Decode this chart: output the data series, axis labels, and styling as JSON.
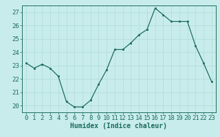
{
  "x": [
    0,
    1,
    2,
    3,
    4,
    5,
    6,
    7,
    8,
    9,
    10,
    11,
    12,
    13,
    14,
    15,
    16,
    17,
    18,
    19,
    20,
    21,
    22,
    23
  ],
  "y": [
    23.2,
    22.8,
    23.1,
    22.8,
    22.2,
    20.3,
    19.9,
    19.9,
    20.4,
    21.6,
    22.7,
    24.2,
    24.2,
    24.7,
    25.3,
    25.7,
    27.3,
    26.8,
    26.3,
    26.3,
    26.3,
    24.5,
    23.2,
    21.8
  ],
  "xlabel": "Humidex (Indice chaleur)",
  "ylim": [
    19.5,
    27.5
  ],
  "xlim": [
    -0.5,
    23.5
  ],
  "yticks": [
    20,
    21,
    22,
    23,
    24,
    25,
    26,
    27
  ],
  "xticks": [
    0,
    1,
    2,
    3,
    4,
    5,
    6,
    7,
    8,
    9,
    10,
    11,
    12,
    13,
    14,
    15,
    16,
    17,
    18,
    19,
    20,
    21,
    22,
    23
  ],
  "line_color": "#1a6b5a",
  "marker_color": "#1a6b5a",
  "bg_color": "#c8ecec",
  "grid_color": "#b0d8d8",
  "axis_color": "#1a6b5a",
  "xlabel_fontsize": 7,
  "tick_fontsize": 6.5
}
